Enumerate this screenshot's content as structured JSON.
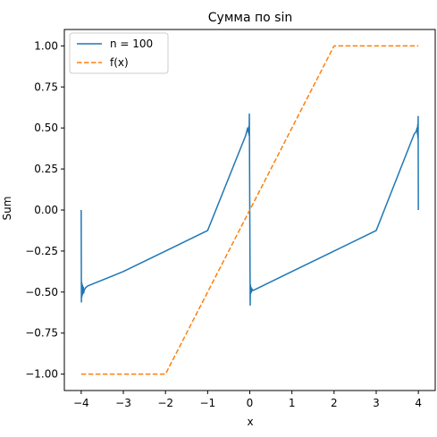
{
  "chart_data": {
    "type": "line",
    "title": "Сумма по sin",
    "xlabel": "x",
    "ylabel": "Sum",
    "xlim": [
      -4.4,
      4.4
    ],
    "ylim": [
      -1.1,
      1.1
    ],
    "xticks": [
      -4,
      -3,
      -2,
      -1,
      0,
      1,
      2,
      3,
      4
    ],
    "xtick_labels": [
      "−4",
      "−3",
      "−2",
      "−1",
      "0",
      "1",
      "2",
      "3",
      "4"
    ],
    "yticks": [
      -1.0,
      -0.75,
      -0.5,
      -0.25,
      0.0,
      0.25,
      0.5,
      0.75,
      1.0
    ],
    "ytick_labels": [
      "−1.00",
      "−0.75",
      "−0.50",
      "−0.25",
      "0.00",
      "0.25",
      "0.50",
      "0.75",
      "1.00"
    ],
    "grid": false,
    "legend_position": "top-left",
    "series": [
      {
        "name": "n = 100",
        "style": "solid",
        "color": "#1f77b4",
        "x": [
          -4.0,
          -3.995,
          -3.99,
          -3.985,
          -3.98,
          -3.975,
          -3.97,
          -3.96,
          -3.95,
          -3.94,
          -3.93,
          -3.9,
          -3.85,
          -3.0,
          -2.0,
          -1.0,
          -0.1,
          -0.05,
          -0.03,
          -0.02,
          -0.015,
          -0.01,
          -0.005,
          0.0,
          0.005,
          0.01,
          0.015,
          0.02,
          0.03,
          0.04,
          0.05,
          0.07,
          0.1,
          1.0,
          2.0,
          3.0,
          3.9,
          3.95,
          3.97,
          3.98,
          3.985,
          3.99,
          3.995,
          4.0
        ],
        "y": [
          0.0,
          -0.56,
          -0.44,
          -0.53,
          -0.45,
          -0.52,
          -0.46,
          -0.51,
          -0.47,
          -0.505,
          -0.49,
          -0.475,
          -0.463,
          -0.375,
          -0.25,
          -0.125,
          0.452,
          0.5,
          0.47,
          0.51,
          0.455,
          0.585,
          0.3,
          0.0,
          -0.3,
          -0.58,
          -0.455,
          -0.51,
          -0.47,
          -0.5,
          -0.48,
          -0.49,
          -0.488,
          -0.375,
          -0.25,
          -0.125,
          0.462,
          0.48,
          0.5,
          0.46,
          0.52,
          0.44,
          0.57,
          0.0
        ]
      },
      {
        "name": "f(x)",
        "style": "dashed",
        "color": "#ff7f0e",
        "x": [
          -4.0,
          -2.0,
          2.0,
          4.0
        ],
        "y": [
          -1.0,
          -1.0,
          1.0,
          1.0
        ]
      }
    ]
  }
}
